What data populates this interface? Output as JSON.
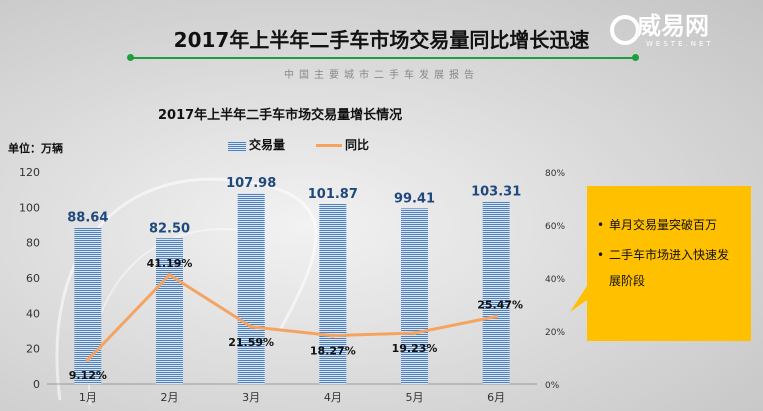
{
  "header": {
    "title": "2017年上半年二手车市场交易量同比增长迅速",
    "subtitle": "中国主要城市二手车发展报告",
    "logo_text": "威易网",
    "logo_url_text": "WESTE.NET"
  },
  "callout": {
    "bullets": [
      "单月交易量突破百万",
      "二手车市场进入快速发展阶段"
    ]
  },
  "colors": {
    "bar": "#4f81bd",
    "line": "#f4a460",
    "accent": "#1f9e3f",
    "callout": "#ffc000"
  },
  "chart_data": {
    "type": "bar",
    "title": "2017年上半年二手车市场交易量增长情况",
    "unit_label": "单位：万辆",
    "categories": [
      "1月",
      "2月",
      "3月",
      "4月",
      "5月",
      "6月"
    ],
    "series": [
      {
        "name": "交易量",
        "type": "bar",
        "axis": "left",
        "values": [
          88.64,
          82.5,
          107.98,
          101.87,
          99.41,
          103.31
        ],
        "labels": [
          "88.64",
          "82.50",
          "107.98",
          "101.87",
          "99.41",
          "103.31"
        ]
      },
      {
        "name": "同比",
        "type": "line",
        "axis": "right",
        "values": [
          9.12,
          41.19,
          21.59,
          18.27,
          19.23,
          25.47
        ],
        "labels": [
          "9.12%",
          "41.19%",
          "21.59%",
          "18.27%",
          "19.23%",
          "25.47%"
        ]
      }
    ],
    "y_left": {
      "min": 0,
      "max": 120,
      "ticks": [
        "0",
        "20",
        "40",
        "60",
        "80",
        "100",
        "120"
      ]
    },
    "y_right": {
      "min": 0,
      "max": 80,
      "ticks": [
        "0%",
        "20%",
        "40%",
        "60%",
        "80%"
      ]
    },
    "legend_position": "top"
  }
}
